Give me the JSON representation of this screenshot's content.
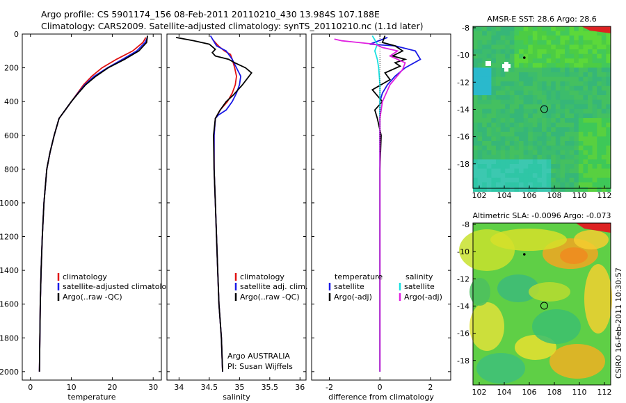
{
  "header": {
    "line1": "Argo profile: CS 5901174_156 08-Feb-2011 20110210_430 13.984S 107.188E",
    "line2": "Climatology: CARS2009. Satellite-adjusted climatology: synTS_20110210.nc (1.1d later)"
  },
  "side_label": "CSIRO 16-Feb-2011 10:30:57",
  "colors": {
    "climatology": "#e01010",
    "satellite": "#1a1ae6",
    "argo": "#000000",
    "sal_satellite": "#18e0e0",
    "sal_argo": "#e020e0"
  },
  "chart_data": [
    {
      "type": "line",
      "xlabel": "temperature",
      "xlim": [
        -2,
        32
      ],
      "ylim": [
        2050,
        0
      ],
      "xticks": [
        "0",
        "10",
        "20",
        "30"
      ],
      "yticks": [
        "0",
        "200",
        "400",
        "600",
        "800",
        "1000",
        "1200",
        "1400",
        "1600",
        "1800",
        "2000"
      ],
      "legend": [
        "climatology",
        "satellite-adjusted climatology",
        "Argo(..raw -QC)"
      ],
      "series": [
        {
          "name": "climatology",
          "x": [
            28.2,
            27.5,
            25,
            21,
            17.5,
            15,
            13,
            11.5,
            10,
            8.5,
            7,
            5.8,
            4.8,
            4,
            3.3,
            2.9,
            2.6,
            2.4,
            2.3,
            2.2
          ],
          "y": [
            20,
            50,
            100,
            150,
            200,
            250,
            300,
            350,
            400,
            450,
            500,
            600,
            700,
            800,
            1000,
            1200,
            1400,
            1600,
            1800,
            2000
          ]
        },
        {
          "name": "satellite-adjusted climatology",
          "x": [
            28.6,
            28,
            26,
            22.5,
            18.8,
            15.6,
            13.3,
            11.6,
            10,
            8.5,
            7,
            5.8,
            4.8,
            4,
            3.3,
            2.9,
            2.6,
            2.4,
            2.3,
            2.2
          ],
          "y": [
            20,
            50,
            100,
            150,
            200,
            250,
            300,
            350,
            400,
            450,
            500,
            600,
            700,
            800,
            1000,
            1200,
            1400,
            1600,
            1800,
            2000
          ]
        },
        {
          "name": "Argo(..raw -QC)",
          "x": [
            28.6,
            28.4,
            26.5,
            23,
            19,
            16,
            13.5,
            11.7,
            10,
            8.5,
            7,
            5.8,
            4.8,
            4,
            3.3,
            2.9,
            2.6,
            2.4,
            2.3,
            2.2
          ],
          "y": [
            10,
            50,
            100,
            150,
            200,
            250,
            300,
            350,
            400,
            450,
            500,
            600,
            700,
            800,
            1000,
            1200,
            1400,
            1600,
            1800,
            2000
          ]
        }
      ]
    },
    {
      "type": "line",
      "xlabel": "salinity",
      "xlim": [
        33.8,
        36.1
      ],
      "ylim": [
        2050,
        0
      ],
      "xticks": [
        "34",
        "34.5",
        "35",
        "35.5",
        "36"
      ],
      "legend": [
        "climatology",
        "satellite adj. clim.",
        "Argo(..raw -QC)"
      ],
      "series": [
        {
          "name": "climatology",
          "x": [
            34.55,
            34.65,
            34.75,
            34.85,
            34.88,
            34.92,
            34.95,
            34.93,
            34.88,
            34.8,
            34.68,
            34.6,
            34.58,
            34.58,
            34.6,
            34.62,
            34.64,
            34.66,
            34.7,
            34.72
          ],
          "y": [
            30,
            70,
            100,
            120,
            150,
            200,
            250,
            300,
            350,
            400,
            450,
            500,
            600,
            800,
            1000,
            1200,
            1400,
            1600,
            1800,
            2000
          ]
        },
        {
          "name": "satellite adj. clim.",
          "x": [
            34.52,
            34.62,
            34.78,
            34.88,
            34.95,
            35.02,
            35.0,
            34.95,
            34.88,
            34.78,
            34.65,
            34.6,
            34.58,
            34.58,
            34.6,
            34.62,
            34.64,
            34.66,
            34.7,
            34.72
          ],
          "y": [
            10,
            70,
            100,
            150,
            200,
            250,
            300,
            350,
            400,
            450,
            480,
            500,
            600,
            800,
            1000,
            1200,
            1400,
            1600,
            1800,
            2000
          ]
        },
        {
          "name": "Argo(..raw -QC)",
          "x": [
            33.95,
            34.25,
            34.5,
            34.6,
            34.55,
            34.6,
            34.82,
            34.92,
            35.1,
            35.2,
            35.05,
            34.9,
            34.78,
            34.68,
            34.6,
            34.57,
            34.58,
            34.6,
            34.62,
            34.64,
            34.66,
            34.7,
            34.72
          ],
          "y": [
            20,
            40,
            60,
            90,
            110,
            130,
            150,
            170,
            200,
            230,
            300,
            360,
            400,
            450,
            500,
            600,
            800,
            1000,
            1200,
            1400,
            1600,
            1800,
            2000
          ]
        }
      ]
    },
    {
      "type": "line",
      "xlabel": "difference from climatology",
      "xlim": [
        -2.7,
        2.8
      ],
      "ylim": [
        2050,
        0
      ],
      "xticks": [
        "-2",
        "0",
        "2"
      ],
      "legend": [
        "temperature",
        "satellite",
        "Argo(-adj)",
        "salinity",
        "satellite",
        "Argo(-adj)"
      ],
      "series": [
        {
          "name": "temperature satellite",
          "x": [
            0.3,
            -0.4,
            0.6,
            1.4,
            1.6,
            1.0,
            0.6,
            0.3,
            0.1,
            0,
            0,
            0,
            0,
            0,
            0,
            0,
            0,
            0,
            0,
            0
          ],
          "y": [
            20,
            60,
            70,
            100,
            150,
            200,
            250,
            300,
            350,
            400,
            450,
            500,
            600,
            800,
            1000,
            1200,
            1400,
            1600,
            1800,
            2000
          ]
        },
        {
          "name": "temperature Argo(-adj)",
          "x": [
            0.2,
            0.1,
            0.6,
            0.9,
            0.5,
            1.0,
            0.6,
            0.8,
            0.2,
            0.4,
            -0.3,
            0.1,
            -0.2,
            -0.1,
            0.05,
            0,
            0,
            0,
            0,
            0,
            0
          ],
          "y": [
            10,
            50,
            70,
            100,
            130,
            150,
            170,
            190,
            230,
            270,
            330,
            400,
            450,
            500,
            600,
            800,
            1000,
            1200,
            1400,
            1600,
            2000
          ]
        },
        {
          "name": "salinity satellite",
          "x": [
            -0.3,
            -0.1,
            -0.2,
            -0.1,
            -0.05,
            0,
            0,
            0,
            0,
            0,
            0,
            0,
            0,
            0,
            0,
            0
          ],
          "y": [
            10,
            60,
            100,
            150,
            200,
            300,
            400,
            500,
            600,
            800,
            1000,
            1200,
            1400,
            1600,
            1800,
            2000
          ]
        },
        {
          "name": "salinity Argo(-adj)",
          "x": [
            -1.8,
            -1.5,
            -0.2,
            0.1,
            0.7,
            0.4,
            1.0,
            0.9,
            0.4,
            0.1,
            0,
            0,
            0,
            0,
            0,
            0
          ],
          "y": [
            30,
            40,
            60,
            80,
            100,
            130,
            170,
            210,
            300,
            400,
            500,
            600,
            800,
            1000,
            1400,
            2000
          ]
        }
      ]
    },
    {
      "type": "heatmap",
      "title": "AMSR-E SST: 28.6 Argo: 28.6",
      "xlim": [
        101.5,
        112.5
      ],
      "ylim": [
        -19.8,
        -7.9
      ],
      "xticks": [
        "102",
        "104",
        "106",
        "108",
        "110",
        "112"
      ],
      "yticks": [
        "-8",
        "-10",
        "-12",
        "-14",
        "-16",
        "-18"
      ],
      "marker": {
        "lon": 107.19,
        "lat": -13.98
      },
      "float_track": {
        "lon": 105.6,
        "lat": -10.2
      }
    },
    {
      "type": "heatmap",
      "title": "Altimetric SLA: -0.0096 Argo: -0.073",
      "xlim": [
        101.5,
        112.5
      ],
      "ylim": [
        -19.8,
        -7.9
      ],
      "xticks": [
        "102",
        "104",
        "106",
        "108",
        "110",
        "112"
      ],
      "yticks": [
        "-8",
        "-10",
        "-12",
        "-14",
        "-16",
        "-18"
      ],
      "marker": {
        "lon": 107.19,
        "lat": -13.98
      },
      "float_track": {
        "lon": 105.6,
        "lat": -10.2
      }
    }
  ],
  "credits": {
    "line1": "Argo AUSTRALIA",
    "line2": "PI: Susan Wijffels"
  }
}
